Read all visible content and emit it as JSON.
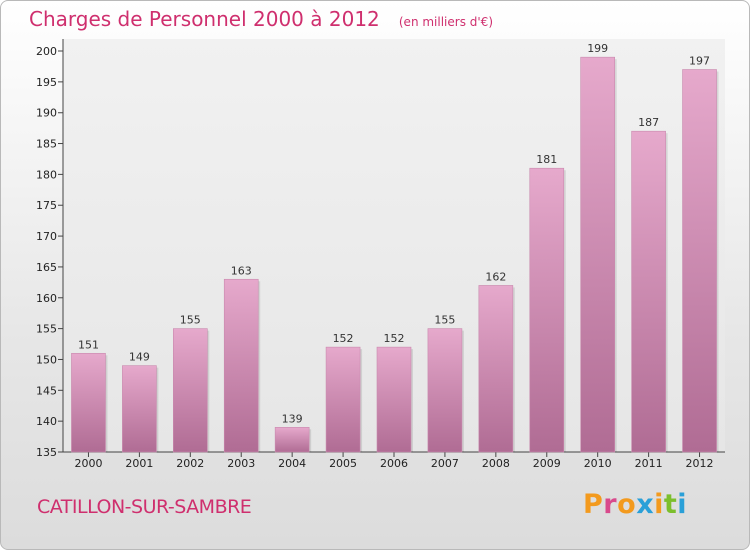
{
  "header": {
    "title": "Charges de Personnel 2000 à 2012",
    "subtitle": "(en milliers d'€)"
  },
  "footer": {
    "commune": "CATILLON-SUR-SAMBRE",
    "logo_text": "Proxiti"
  },
  "colors": {
    "title": "#cf2f6e",
    "bar_top": "#e6a9cc",
    "bar_bottom": "#b06c94",
    "logo_letters": [
      "#f39a1e",
      "#d94a8c",
      "#f39a1e",
      "#2aa0d8",
      "#f39a1e",
      "#7cbf2c",
      "#2aa0d8"
    ]
  },
  "chart_data": {
    "type": "bar",
    "title": "Charges de Personnel 2000 à 2012",
    "subtitle": "(en milliers d'€)",
    "xlabel": "",
    "ylabel": "",
    "categories": [
      "2000",
      "2001",
      "2002",
      "2003",
      "2004",
      "2005",
      "2006",
      "2007",
      "2008",
      "2009",
      "2010",
      "2011",
      "2012"
    ],
    "values": [
      151,
      149,
      155,
      163,
      139,
      152,
      152,
      155,
      162,
      181,
      199,
      187,
      197
    ],
    "ylim": [
      135,
      200
    ],
    "yticks": [
      135,
      140,
      145,
      150,
      155,
      160,
      165,
      170,
      175,
      180,
      185,
      190,
      195,
      200
    ],
    "grid": false,
    "legend": "none"
  }
}
